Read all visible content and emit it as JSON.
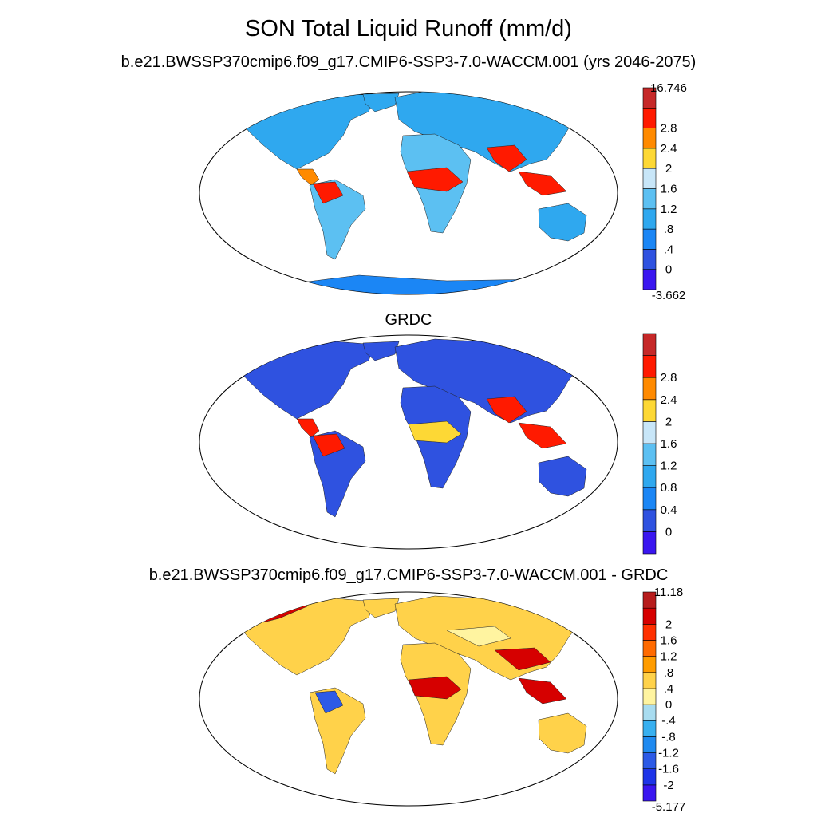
{
  "title": "SON Total Liquid Runoff (mm/d)",
  "panels": [
    {
      "title": "b.e21.BWSSP370cmip6.f09_g17.CMIP6-SSP3-7.0-WACCM.001 (yrs 2046-2075)",
      "colorbar": {
        "colors": [
          "#3a16f0",
          "#2f52e0",
          "#1b86f5",
          "#2fa8ef",
          "#5cc0f2",
          "#c8e6f8",
          "#fdd835",
          "#ff8a00",
          "#ff1a00",
          "#c62828"
        ],
        "labels": [
          "-3.662",
          "0",
          ".4",
          ".8",
          "1.2",
          "1.6",
          "2",
          "2.4",
          "2.8",
          "16.746"
        ]
      }
    },
    {
      "title": "GRDC",
      "colorbar": {
        "colors": [
          "#3a16f0",
          "#2f52e0",
          "#1b86f5",
          "#2fa8ef",
          "#5cc0f2",
          "#c8e6f8",
          "#fdd835",
          "#ff8a00",
          "#ff1a00",
          "#c62828"
        ],
        "labels": [
          "0",
          "0.4",
          "0.8",
          "1.2",
          "1.6",
          "2",
          "2.4",
          "2.8"
        ]
      }
    },
    {
      "title": "b.e21.BWSSP370cmip6.f09_g17.CMIP6-SSP3-7.0-WACCM.001 - GRDC",
      "colorbar": {
        "colors": [
          "#3a16f0",
          "#1e34e8",
          "#2c5ae6",
          "#1f8af0",
          "#38b0f0",
          "#a8dcf0",
          "#fff4a0",
          "#ffd24a",
          "#ff9c00",
          "#ff6a00",
          "#ff3000",
          "#d60000",
          "#b71c1c"
        ],
        "labels": [
          "-5.177",
          "-2",
          "-1.6",
          "-1.2",
          "-.8",
          "-.4",
          "0",
          ".4",
          ".8",
          "1.2",
          "1.6",
          "2",
          "11.18"
        ]
      }
    }
  ]
}
